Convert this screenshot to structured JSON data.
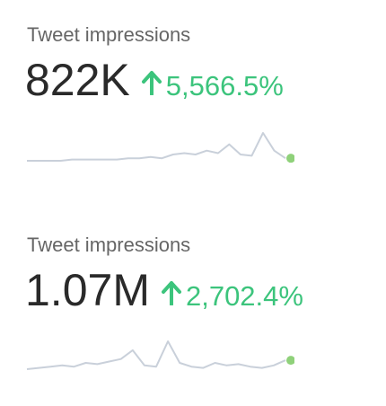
{
  "cards": [
    {
      "label": "Tweet impressions",
      "value": "822K",
      "change": "5,566.5%",
      "sparkline": [
        0,
        0,
        0,
        0,
        1,
        1,
        1,
        1,
        1,
        2,
        2,
        3,
        2,
        5,
        6,
        5,
        8,
        6,
        13,
        5,
        4,
        22,
        8,
        2
      ]
    },
    {
      "label": "Tweet impressions",
      "value": "1.07M",
      "change": "2,702.4%",
      "sparkline": [
        0,
        1,
        2,
        3,
        2,
        5,
        4,
        6,
        8,
        15,
        3,
        2,
        22,
        5,
        2,
        1,
        5,
        3,
        4,
        2,
        1,
        3,
        7
      ]
    }
  ]
}
